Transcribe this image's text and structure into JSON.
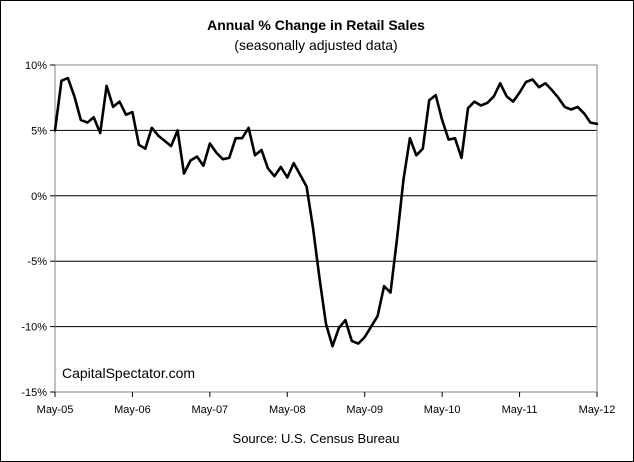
{
  "chart_data": {
    "type": "line",
    "title": "Annual %  Change in Retail Sales",
    "subtitle": "(seasonally adjusted data)",
    "source": "Source: U.S. Census Bureau",
    "watermark": "CapitalSpectator.com",
    "x_tick_labels": [
      "May-05",
      "May-06",
      "May-07",
      "May-08",
      "May-09",
      "May-10",
      "May-11",
      "May-12"
    ],
    "y_ticks": [
      {
        "value": 10,
        "label": "10%"
      },
      {
        "value": 5,
        "label": "5%"
      },
      {
        "value": 0,
        "label": "0%"
      },
      {
        "value": -5,
        "label": "-5%"
      },
      {
        "value": -10,
        "label": "-10%"
      },
      {
        "value": -15,
        "label": "-15%"
      }
    ],
    "ylim": [
      -15,
      10
    ],
    "x_start": "May-05",
    "x_end": "May-12",
    "grid": "horizontal",
    "line_color": "#000000",
    "plot_background": "#ffffff",
    "series": [
      {
        "values": [
          5.0,
          8.8,
          9.0,
          7.6,
          5.8,
          5.6,
          6.0,
          4.8,
          8.4,
          6.8,
          7.2,
          6.2,
          6.4,
          3.9,
          3.6,
          5.2,
          4.6,
          4.2,
          3.8,
          5.0,
          1.7,
          2.7,
          3.0,
          2.3,
          4.0,
          3.3,
          2.8,
          2.9,
          4.4,
          4.4,
          5.2,
          3.1,
          3.5,
          2.1,
          1.5,
          2.2,
          1.4,
          2.5,
          1.6,
          0.7,
          -2.5,
          -6.3,
          -9.8,
          -11.5,
          -10.1,
          -9.5,
          -11.1,
          -11.3,
          -10.8,
          -10.0,
          -9.2,
          -6.9,
          -7.4,
          -3.3,
          1.2,
          4.4,
          3.1,
          3.6,
          7.3,
          7.7,
          5.8,
          4.3,
          4.4,
          2.9,
          6.7,
          7.2,
          6.9,
          7.1,
          7.6,
          8.6,
          7.6,
          7.2,
          7.9,
          8.7,
          8.9,
          8.3,
          8.6,
          8.1,
          7.5,
          6.8,
          6.6,
          6.8,
          6.3,
          5.6,
          5.5
        ]
      }
    ]
  }
}
